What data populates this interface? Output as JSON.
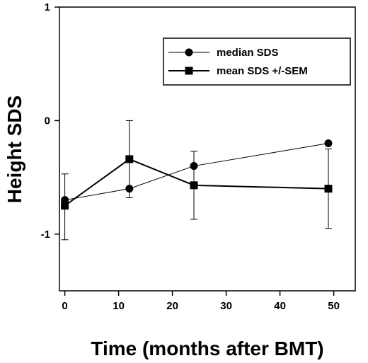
{
  "chart_data": {
    "type": "line",
    "title": "",
    "xlabel": "Time (months after BMT)",
    "ylabel": "Height SDS",
    "xlim": [
      -1,
      54
    ],
    "ylim": [
      -1.5,
      1
    ],
    "xticks": [
      0,
      10,
      20,
      30,
      40,
      50
    ],
    "yticks": [
      {
        "value": -1,
        "label": "-1"
      },
      {
        "value": 0,
        "label": "0"
      },
      {
        "value": 1,
        "label": "1"
      }
    ],
    "grid": false,
    "legend_position": "top-right",
    "series": [
      {
        "name": "median SDS",
        "marker": "circle",
        "x": [
          0,
          12,
          24,
          49
        ],
        "y": [
          -0.7,
          -0.6,
          -0.4,
          -0.2
        ]
      },
      {
        "name": "mean SDS +/-SEM",
        "marker": "square",
        "x": [
          0,
          12,
          24,
          49
        ],
        "y": [
          -0.75,
          -0.34,
          -0.57,
          -0.6
        ],
        "err_low": [
          -1.05,
          -0.68,
          -0.87,
          -0.95
        ],
        "err_high": [
          -0.47,
          0.0,
          -0.27,
          -0.25
        ]
      }
    ]
  }
}
